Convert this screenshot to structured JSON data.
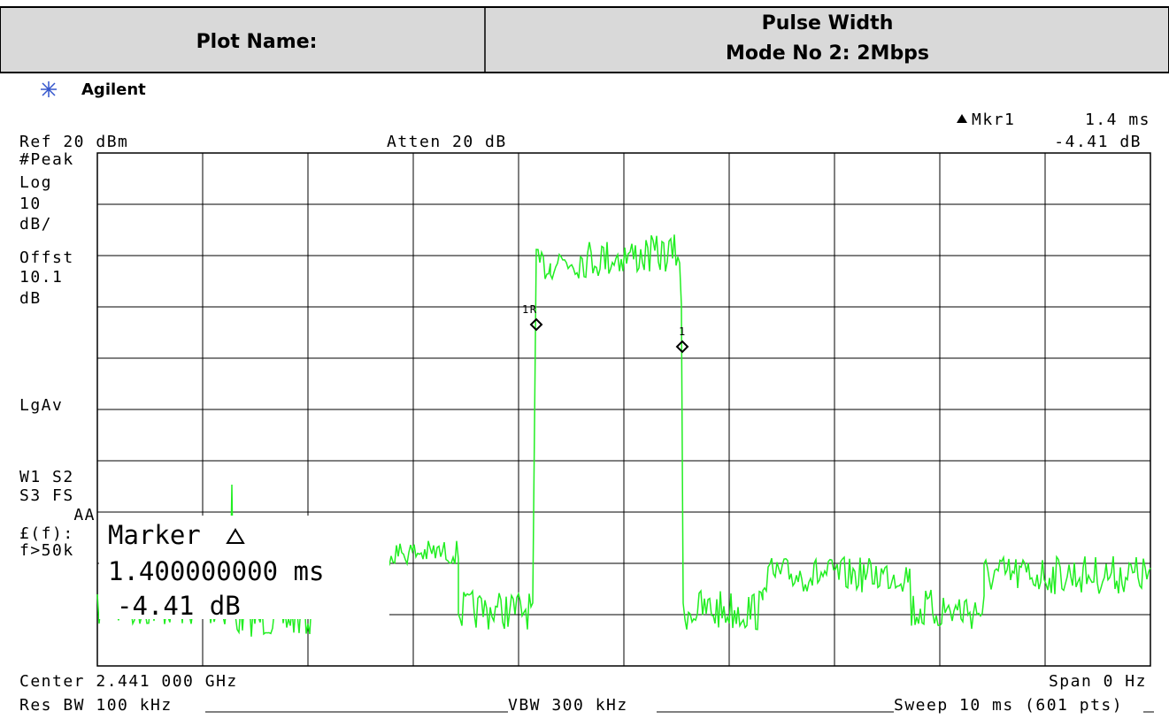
{
  "header": {
    "label": "Plot Name:",
    "value_lines": [
      "Pulse Width",
      "Mode No 2: 2Mbps"
    ]
  },
  "instrument": {
    "brand": "Agilent",
    "marker_readout": {
      "name": "Mkr1",
      "time": "1.4 ms",
      "level": "-4.41 dB"
    },
    "ref": "Ref 20 dBm",
    "atten": "Atten 20 dB",
    "side_labels": [
      "#Peak",
      "Log",
      "10",
      "dB/",
      "Offst",
      "10.1",
      "dB",
      "LgAv",
      "W1  S2",
      "S3  FS",
      "AA",
      "£(f):",
      "f>50k"
    ],
    "marker_box": {
      "title": "Marker",
      "time": "1.400000000 ms",
      "level": "-4.41 dB"
    },
    "marker_tags": [
      "1R",
      "1"
    ],
    "center": "Center 2.441 000 GHz",
    "span": "Span 0 Hz",
    "res_bw": "Res BW 100 kHz",
    "vbw": "VBW 300 kHz",
    "sweep": "Sweep 10 ms (601 pts)"
  }
}
